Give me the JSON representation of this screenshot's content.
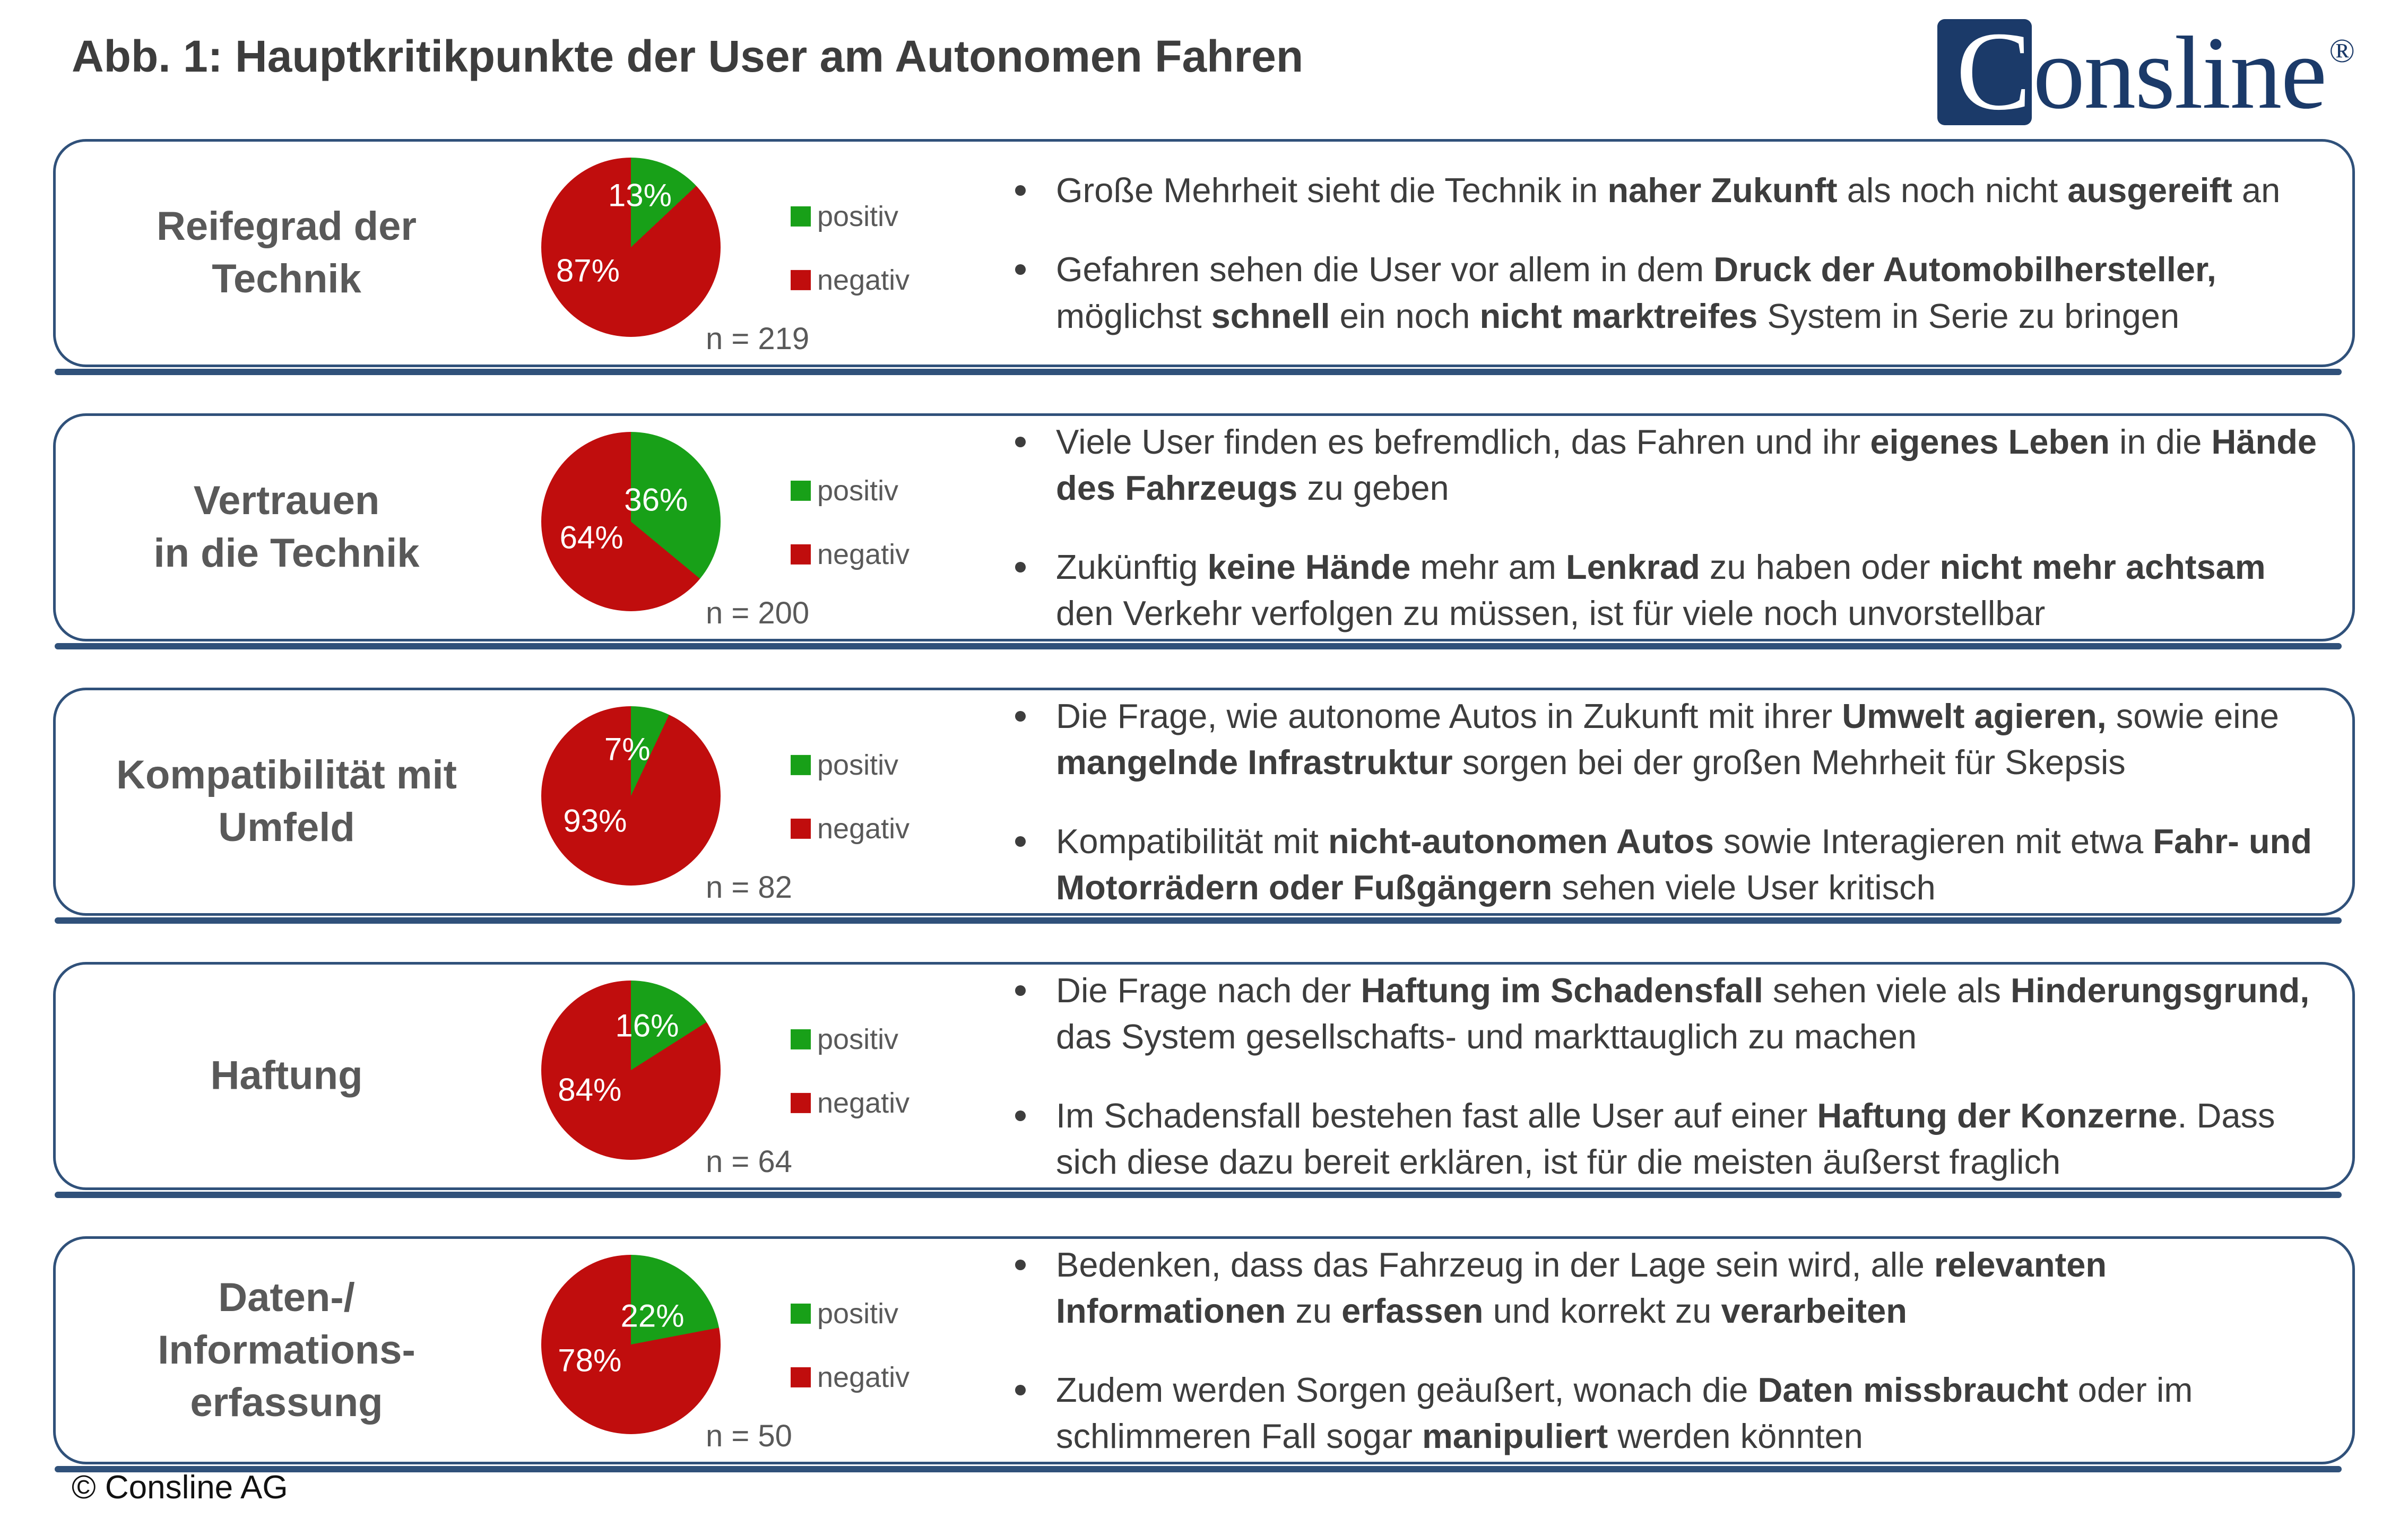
{
  "page": {
    "title": "Abb. 1: Hauptkritikpunkte der User am Autonomen Fahren",
    "footer": "© Consline AG",
    "logo": {
      "initial": "C",
      "rest": "onsline",
      "registered": "®"
    }
  },
  "legend": {
    "positive": "positiv",
    "negative": "negativ"
  },
  "colors": {
    "positive": "#18a018",
    "negative": "#c00d0d",
    "border": "#30517a",
    "heading": "#595959",
    "body": "#3d3d3d",
    "logo": "#1b3a69"
  },
  "chart_data": [
    {
      "type": "pie",
      "title": "Reifegrad der Technik",
      "categories": [
        "positiv",
        "negativ"
      ],
      "values": [
        13,
        87
      ],
      "labels": [
        "13%",
        "87%"
      ],
      "colors": [
        "#18a018",
        "#c00d0d"
      ],
      "sample_label": "n = 219",
      "n": 219,
      "start_angle_deg": 0,
      "direction": "clockwise",
      "legend_position": "right",
      "label_pos": [
        [
          55,
          21
        ],
        [
          26,
          63
        ]
      ]
    },
    {
      "type": "pie",
      "title": "Vertrauen in die Technik",
      "categories": [
        "positiv",
        "negativ"
      ],
      "values": [
        36,
        64
      ],
      "labels": [
        "36%",
        "64%"
      ],
      "colors": [
        "#18a018",
        "#c00d0d"
      ],
      "sample_label": "n = 200",
      "n": 200,
      "start_angle_deg": 0,
      "direction": "clockwise",
      "legend_position": "right",
      "label_pos": [
        [
          64,
          38
        ],
        [
          28,
          59
        ]
      ]
    },
    {
      "type": "pie",
      "title": "Kompatibilität mit Umfeld",
      "categories": [
        "positiv",
        "negativ"
      ],
      "values": [
        7,
        93
      ],
      "labels": [
        "7%",
        "93%"
      ],
      "colors": [
        "#18a018",
        "#c00d0d"
      ],
      "sample_label": "n = 82",
      "n": 82,
      "start_angle_deg": 0,
      "direction": "clockwise",
      "legend_position": "right",
      "label_pos": [
        [
          48,
          24
        ],
        [
          30,
          64
        ]
      ]
    },
    {
      "type": "pie",
      "title": "Haftung",
      "categories": [
        "positiv",
        "negativ"
      ],
      "values": [
        16,
        84
      ],
      "labels": [
        "16%",
        "84%"
      ],
      "colors": [
        "#18a018",
        "#c00d0d"
      ],
      "sample_label": "n = 64",
      "n": 64,
      "start_angle_deg": 0,
      "direction": "clockwise",
      "legend_position": "right",
      "label_pos": [
        [
          59,
          25
        ],
        [
          27,
          61
        ]
      ]
    },
    {
      "type": "pie",
      "title": "Daten-/Informationserfassung",
      "categories": [
        "positiv",
        "negativ"
      ],
      "values": [
        22,
        78
      ],
      "labels": [
        "22%",
        "78%"
      ],
      "colors": [
        "#18a018",
        "#c00d0d"
      ],
      "sample_label": "n = 50",
      "n": 50,
      "start_angle_deg": 0,
      "direction": "clockwise",
      "legend_position": "right",
      "label_pos": [
        [
          62,
          34
        ],
        [
          27,
          59
        ]
      ]
    }
  ],
  "rows": [
    {
      "title": "Reifegrad der\nTechnik",
      "bullets": [
        [
          {
            "t": "Große Mehrheit sieht die Technik in "
          },
          {
            "t": "naher Zukunft",
            "b": true
          },
          {
            "t": " als noch nicht "
          },
          {
            "t": "ausgereift",
            "b": true
          },
          {
            "t": " an"
          }
        ],
        [
          {
            "t": "Gefahren sehen die User vor allem in dem "
          },
          {
            "t": "Druck der Automobilhersteller,",
            "b": true
          },
          {
            "t": " möglichst "
          },
          {
            "t": "schnell",
            "b": true
          },
          {
            "t": " ein noch "
          },
          {
            "t": "nicht marktreifes",
            "b": true
          },
          {
            "t": " System in Serie zu bringen"
          }
        ]
      ]
    },
    {
      "title": "Vertrauen\nin die Technik",
      "bullets": [
        [
          {
            "t": "Viele User finden es befremdlich, das Fahren und ihr "
          },
          {
            "t": "eigenes Leben",
            "b": true
          },
          {
            "t": " in die "
          },
          {
            "t": "Hände des Fahrzeugs",
            "b": true
          },
          {
            "t": " zu geben"
          }
        ],
        [
          {
            "t": "Zukünftig "
          },
          {
            "t": "keine Hände",
            "b": true
          },
          {
            "t": " mehr am "
          },
          {
            "t": "Lenkrad",
            "b": true
          },
          {
            "t": " zu haben oder "
          },
          {
            "t": "nicht mehr achtsam",
            "b": true
          },
          {
            "t": " den Verkehr verfolgen zu müssen, ist für viele noch unvorstellbar"
          }
        ]
      ]
    },
    {
      "title": "Kompatibilität mit\nUmfeld",
      "bullets": [
        [
          {
            "t": "Die Frage, wie autonome Autos in Zukunft mit ihrer "
          },
          {
            "t": "Umwelt agieren,",
            "b": true
          },
          {
            "t": " sowie eine "
          },
          {
            "t": "mangelnde Infrastruktur",
            "b": true
          },
          {
            "t": " sorgen bei der großen Mehrheit für Skepsis"
          }
        ],
        [
          {
            "t": "Kompatibilität mit "
          },
          {
            "t": "nicht-autonomen Autos",
            "b": true
          },
          {
            "t": " sowie Interagieren mit etwa "
          },
          {
            "t": "Fahr- und Motorrädern oder Fußgängern",
            "b": true
          },
          {
            "t": " sehen viele User kritisch"
          }
        ]
      ]
    },
    {
      "title": "Haftung",
      "bullets": [
        [
          {
            "t": "Die Frage nach der "
          },
          {
            "t": "Haftung im Schadensfall",
            "b": true
          },
          {
            "t": " sehen viele als "
          },
          {
            "t": "Hinderungsgrund,",
            "b": true
          },
          {
            "t": " das System gesellschafts- und markttauglich zu machen"
          }
        ],
        [
          {
            "t": "Im Schadensfall bestehen fast alle User auf einer "
          },
          {
            "t": "Haftung der Konzerne",
            "b": true
          },
          {
            "t": ". Dass sich diese dazu bereit erklären, ist für die meisten äußerst fraglich"
          }
        ]
      ]
    },
    {
      "title": "Daten-/\nInformations-\nerfassung",
      "bullets": [
        [
          {
            "t": "Bedenken, dass das Fahrzeug in der Lage sein wird, alle "
          },
          {
            "t": "relevanten Informationen",
            "b": true
          },
          {
            "t": " zu "
          },
          {
            "t": "erfassen",
            "b": true
          },
          {
            "t": " und korrekt zu "
          },
          {
            "t": "verarbeiten",
            "b": true
          }
        ],
        [
          {
            "t": "Zudem werden Sorgen geäußert, wonach die "
          },
          {
            "t": "Daten missbraucht",
            "b": true
          },
          {
            "t": " oder im schlimmeren Fall sogar "
          },
          {
            "t": "manipuliert",
            "b": true
          },
          {
            "t": " werden könnten"
          }
        ]
      ]
    }
  ],
  "layout": {
    "card_top_start": 262,
    "card_spacing": 517
  }
}
